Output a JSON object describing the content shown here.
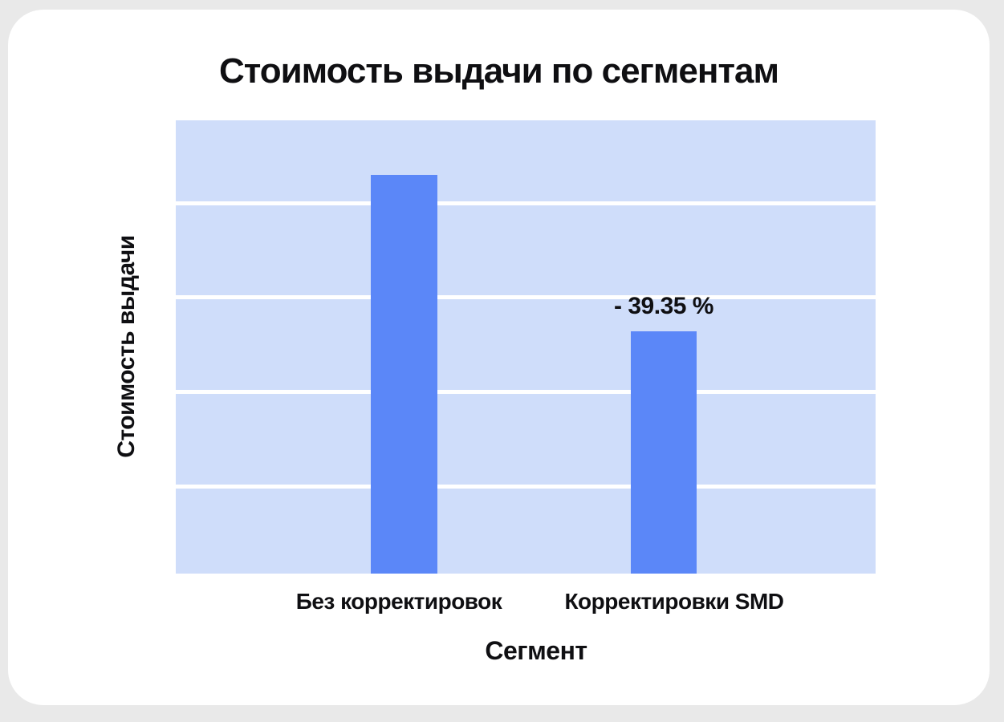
{
  "page": {
    "background_color": "#e9e9e9",
    "card_color": "#ffffff"
  },
  "chart_data": {
    "type": "bar",
    "title": "Стоимость выдачи по сегментам",
    "xlabel": "Сегмент",
    "ylabel": "Стоимость выдачи",
    "categories": [
      "Без корректировок",
      "Корректировки SMD"
    ],
    "series": [
      {
        "name": "Стоимость выдачи",
        "values": [
          100,
          60.65
        ]
      }
    ],
    "values_scale": "relative, first bar = 100 (no numeric axis labels shown on chart)",
    "annotations": [
      {
        "target_category": "Корректировки SMD",
        "text": "- 39.35 %"
      }
    ],
    "ylim": [
      0,
      113.6
    ],
    "grid": "horizontal gridlines only",
    "gridline_positions_pct_from_top": [
      18.2,
      38.9,
      59.8,
      80.7
    ],
    "legend": "none",
    "tick_labels_y": [],
    "colors": {
      "bar": "#5b87f8",
      "plot_background": "#cfddfa",
      "gridline": "#ffffff",
      "text": "#0f0f12"
    }
  }
}
